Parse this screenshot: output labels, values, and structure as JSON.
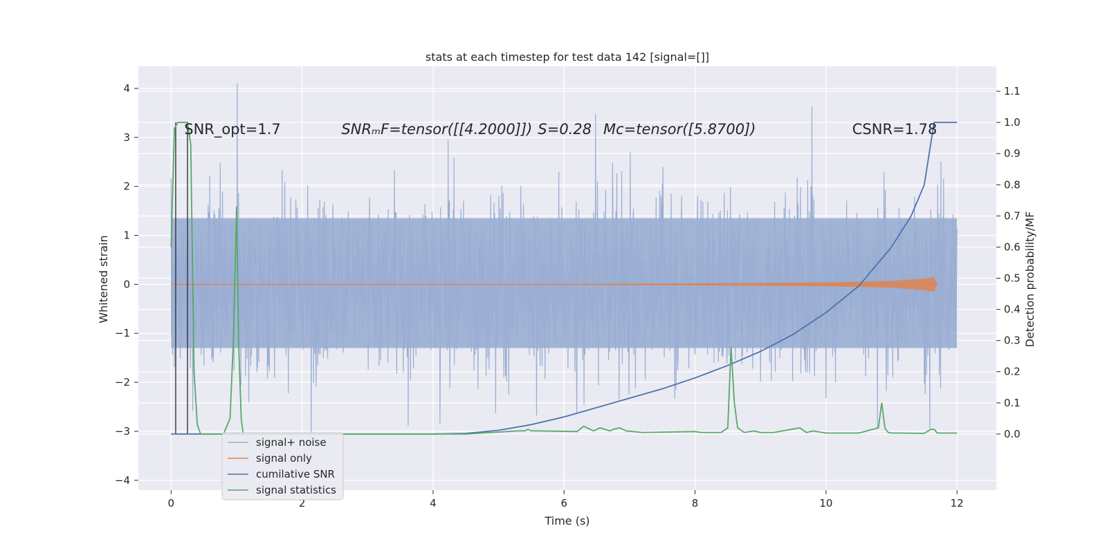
{
  "chart_data": {
    "type": "line",
    "title": "stats at each timestep for test data 142 [signal=[]]",
    "xlabel": "Time (s)",
    "ylabel_left": "Whitened strain",
    "ylabel_right": "Detection probability/MF",
    "xlim": [
      -0.5,
      12.6
    ],
    "ylim_left": [
      -4.2,
      4.45
    ],
    "ylim_right": [
      -0.18,
      1.18
    ],
    "xticks": [
      0,
      2,
      4,
      6,
      8,
      10,
      12
    ],
    "xtick_labels": [
      "0",
      "2",
      "4",
      "6",
      "8",
      "10",
      "12"
    ],
    "yticks_left": [
      -4,
      -3,
      -2,
      -1,
      0,
      1,
      2,
      3,
      4
    ],
    "ytick_labels_left": [
      "−4",
      "−3",
      "−2",
      "−1",
      "0",
      "1",
      "2",
      "3",
      "4"
    ],
    "yticks_right": [
      0.0,
      0.1,
      0.2,
      0.3,
      0.4,
      0.5,
      0.6,
      0.7,
      0.8,
      0.9,
      1.0,
      1.1
    ],
    "ytick_labels_right": [
      "0.0",
      "0.1",
      "0.2",
      "0.3",
      "0.4",
      "0.5",
      "0.6",
      "0.7",
      "0.8",
      "0.9",
      "1.0",
      "1.1"
    ],
    "grid": true,
    "legend_position": "lower-left",
    "annotations": [
      {
        "text": "SNR_opt=1.7",
        "x": 0.2,
        "y_right": 0.98
      },
      {
        "text": "SNRₘF=tensor([[4.2000]])",
        "x": 2.6,
        "y_right": 0.98
      },
      {
        "text": "S=0.28",
        "x": 5.6,
        "y_right": 0.98
      },
      {
        "text": "Mᴄ=tensor([5.8700])",
        "x": 6.6,
        "y_right": 0.98
      },
      {
        "text": "CSNR=1.78",
        "x": 10.4,
        "y_right": 0.98
      }
    ],
    "series": [
      {
        "name": "signal+ noise",
        "axis": "left",
        "color": "#9aaed3",
        "description": "noisy whitened strain, roughly -3 to 4 over t=0..12",
        "envelope": {
          "x_range": [
            0,
            12
          ],
          "typical_low": -1.3,
          "typical_high": 1.35,
          "max": 4.1,
          "min": -3.5
        }
      },
      {
        "name": "signal only",
        "axis": "left",
        "color": "#dd8452",
        "x": [
          0,
          4,
          8,
          10,
          11,
          11.5,
          11.65,
          11.7
        ],
        "half_width": [
          0,
          0,
          0.02,
          0.04,
          0.07,
          0.12,
          0.15,
          0
        ]
      },
      {
        "name": "cumilative SNR",
        "axis": "right",
        "color": "#4c72b0",
        "x": [
          0,
          4.0,
          4.5,
          5.0,
          5.5,
          6.0,
          6.5,
          7.0,
          7.5,
          8.0,
          8.5,
          9.0,
          9.5,
          10.0,
          10.5,
          11.0,
          11.3,
          11.5,
          11.65,
          12.0
        ],
        "y": [
          0,
          0,
          0.002,
          0.012,
          0.03,
          0.055,
          0.085,
          0.115,
          0.145,
          0.18,
          0.22,
          0.265,
          0.32,
          0.39,
          0.475,
          0.6,
          0.7,
          0.8,
          1.0,
          1.0
        ]
      },
      {
        "name": "signal statistics",
        "axis": "right",
        "color": "#55a868",
        "x": [
          0,
          0.05,
          0.1,
          0.2,
          0.25,
          0.3,
          0.35,
          0.4,
          0.45,
          0.5,
          0.8,
          0.9,
          0.95,
          1.0,
          1.03,
          1.07,
          1.1,
          1.2,
          4.5,
          5.3,
          5.4,
          5.45,
          5.5,
          5.6,
          6.2,
          6.3,
          6.35,
          6.45,
          6.55,
          6.7,
          6.75,
          6.85,
          6.95,
          7.2,
          8.0,
          8.1,
          8.4,
          8.5,
          8.55,
          8.6,
          8.65,
          8.75,
          8.9,
          9.0,
          9.2,
          9.6,
          9.7,
          9.8,
          10.0,
          10.5,
          10.8,
          10.85,
          10.9,
          10.95,
          11.0,
          11.1,
          11.5,
          11.6,
          11.65,
          11.7,
          11.9,
          12.0
        ],
        "y": [
          0.6,
          0.98,
          1.0,
          1.0,
          1.0,
          0.93,
          0.2,
          0.03,
          0.0,
          0.0,
          0.0,
          0.05,
          0.3,
          0.73,
          0.3,
          0.05,
          0.0,
          0.0,
          0.0,
          0.01,
          0.01,
          0.015,
          0.01,
          0.01,
          0.008,
          0.025,
          0.02,
          0.01,
          0.02,
          0.01,
          0.015,
          0.02,
          0.01,
          0.005,
          0.008,
          0.005,
          0.005,
          0.02,
          0.28,
          0.1,
          0.02,
          0.005,
          0.01,
          0.005,
          0.005,
          0.02,
          0.005,
          0.01,
          0.003,
          0.003,
          0.02,
          0.1,
          0.018,
          0.005,
          0.003,
          0.003,
          0.002,
          0.015,
          0.015,
          0.003,
          0.003,
          0.003
        ]
      }
    ],
    "vertical_markers": [
      {
        "x": 0.07,
        "y_range_right": [
          0.0,
          1.0
        ],
        "color": "#333333"
      },
      {
        "x": 0.25,
        "y_range_right": [
          0.0,
          1.0
        ],
        "color": "#333333"
      }
    ]
  }
}
